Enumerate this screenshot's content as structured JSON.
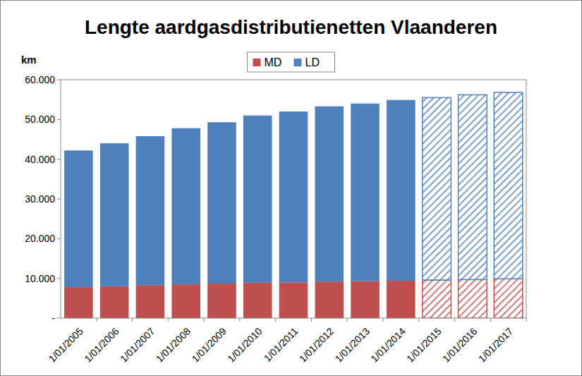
{
  "chart_data": {
    "type": "bar",
    "title": "Lengte aardgasdistributienetten Vlaanderen",
    "y_label": "km",
    "stacked": true,
    "grid": false,
    "legend": "top",
    "categories": [
      "1/01/2005",
      "1/01/2006",
      "1/01/2007",
      "1/01/2008",
      "1/01/2009",
      "1/01/2010",
      "1/01/2011",
      "1/01/2012",
      "1/01/2013",
      "1/01/2014",
      "1/01/2015",
      "1/01/2016",
      "1/01/2017"
    ],
    "series": [
      {
        "name": "MD",
        "color": "#c0504d",
        "values": [
          7800,
          8000,
          8300,
          8500,
          8700,
          8900,
          9000,
          9200,
          9300,
          9400,
          9600,
          9700,
          9900
        ]
      },
      {
        "name": "LD",
        "color": "#4f81bd",
        "values": [
          34400,
          36000,
          37500,
          39300,
          40600,
          42100,
          43000,
          44100,
          44700,
          45500,
          45900,
          46500,
          46900
        ]
      }
    ],
    "ylim": [
      0,
      60000
    ],
    "yticks": [
      {
        "value": 0,
        "label": "-"
      },
      {
        "value": 10000,
        "label": "10.000"
      },
      {
        "value": 20000,
        "label": "20.000"
      },
      {
        "value": 30000,
        "label": "30.000"
      },
      {
        "value": 40000,
        "label": "40.000"
      },
      {
        "value": 50000,
        "label": "50.000"
      },
      {
        "value": 60000,
        "label": "60.000"
      }
    ]
  }
}
